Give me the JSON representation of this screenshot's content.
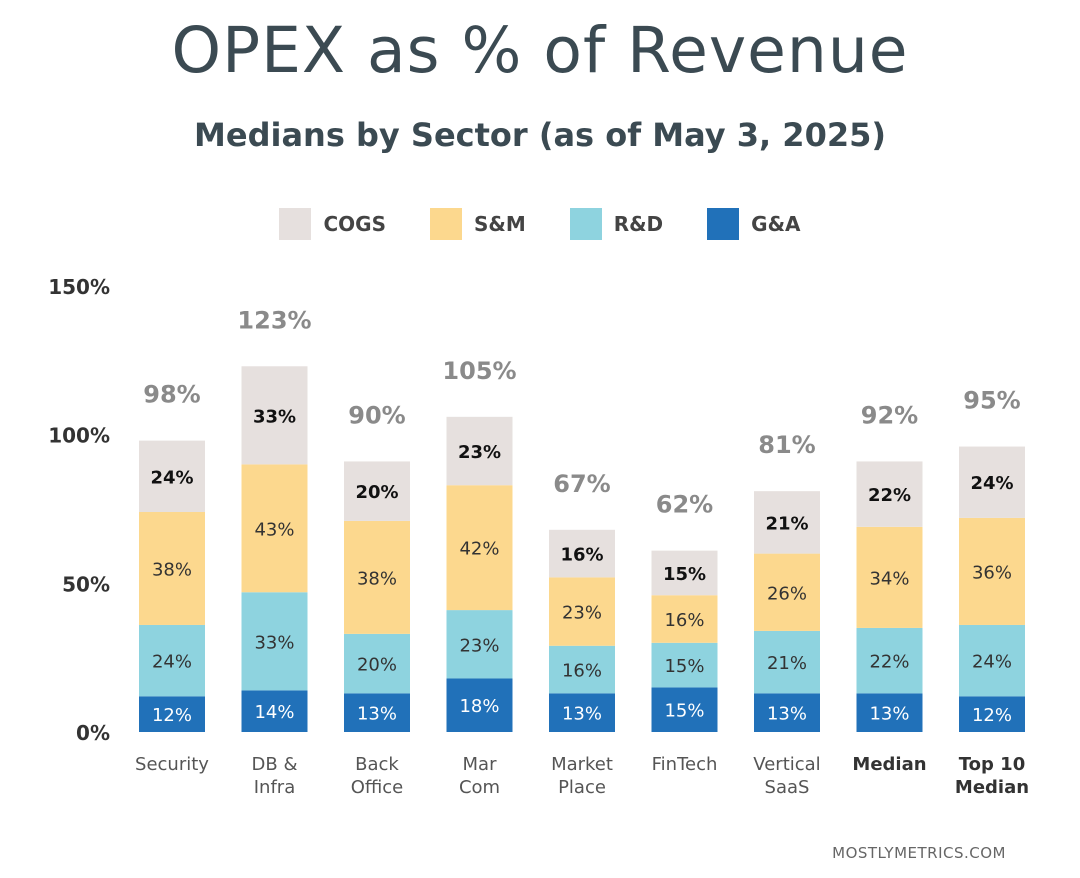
{
  "title": "OPEX as % of Revenue",
  "subtitle": "Medians by Sector (as of  May 3, 2025)",
  "footer": "MOSTLYMETRICS.COM",
  "colors": {
    "COGS": "#e6e0de",
    "S&M": "#fcd88e",
    "R&D": "#8ed3df",
    "G&A": "#2171b9",
    "total_label": "#8a8a8a"
  },
  "legend": [
    "COGS",
    "S&M",
    "R&D",
    "G&A"
  ],
  "chart_data": {
    "type": "bar",
    "stacked": true,
    "categories": [
      [
        "Security"
      ],
      [
        "DB &",
        "Infra"
      ],
      [
        "Back",
        "Office"
      ],
      [
        "Mar",
        "Com"
      ],
      [
        "Market",
        "Place"
      ],
      [
        "FinTech"
      ],
      [
        "Vertical",
        "SaaS"
      ],
      [
        "Median"
      ],
      [
        "Top 10",
        "Median"
      ]
    ],
    "bold_categories": [
      7,
      8
    ],
    "series": [
      {
        "name": "G&A",
        "values": [
          12,
          14,
          13,
          18,
          13,
          15,
          13,
          13,
          12
        ]
      },
      {
        "name": "R&D",
        "values": [
          24,
          33,
          20,
          23,
          16,
          15,
          21,
          22,
          24
        ]
      },
      {
        "name": "S&M",
        "values": [
          38,
          43,
          38,
          42,
          23,
          16,
          26,
          34,
          36
        ]
      },
      {
        "name": "COGS",
        "values": [
          24,
          33,
          20,
          23,
          16,
          15,
          21,
          22,
          24
        ]
      }
    ],
    "totals": [
      "98%",
      "123%",
      "90%",
      "105%",
      "67%",
      "62%",
      "81%",
      "92%",
      "95%"
    ],
    "y_ticks": [
      "0%",
      "50%",
      "100%",
      "150%"
    ],
    "y_tick_values": [
      0,
      50,
      100,
      150
    ],
    "ylim": [
      0,
      150
    ],
    "value_suffix": "%",
    "grid": false
  }
}
